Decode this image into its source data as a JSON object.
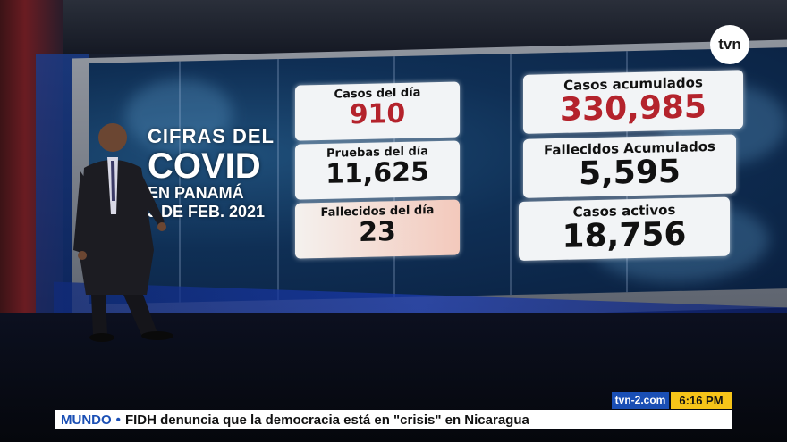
{
  "broadcast": {
    "channel_logo": "tvn",
    "website": "tvn-2.com",
    "time": "6:16 PM"
  },
  "graphic": {
    "title_line1": "CIFRAS DEL",
    "title_line2": "COVID",
    "title_line3": "EN PANAMÁ",
    "title_line4": "3 DE FEB. 2021",
    "cards": {
      "casos_dia": {
        "label": "Casos del día",
        "value": "910"
      },
      "pruebas_dia": {
        "label": "Pruebas del día",
        "value": "11,625"
      },
      "fallecidos_dia": {
        "label": "Fallecidos del día",
        "value": "23"
      },
      "casos_acumulados": {
        "label": "Casos acumulados",
        "value": "330,985"
      },
      "fallecidos_acumulados": {
        "label": "Fallecidos Acumulados",
        "value": "5,595"
      },
      "casos_activos": {
        "label": "Casos activos",
        "value": "18,756"
      }
    }
  },
  "ticker": {
    "category": "MUNDO",
    "separator": "•",
    "headline": "FIDH denuncia que la democracia está en \"crisis\" en Nicaragua"
  }
}
